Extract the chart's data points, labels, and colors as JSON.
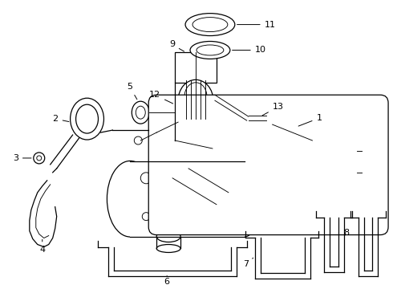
{
  "background_color": "#ffffff",
  "line_color": "#000000",
  "fig_width": 4.9,
  "fig_height": 3.6,
  "dpi": 100,
  "font_size": 8
}
